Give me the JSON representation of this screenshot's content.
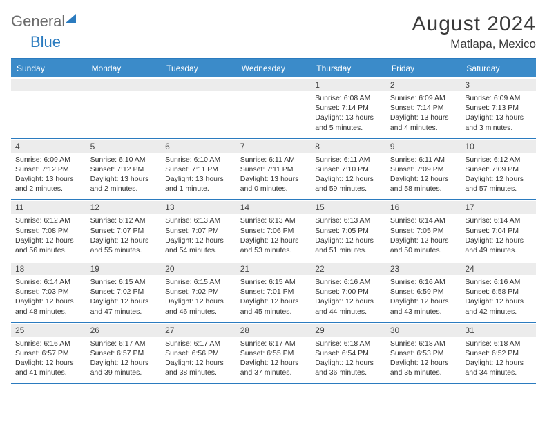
{
  "logo": {
    "t1": "General",
    "t2": "Blue"
  },
  "header": {
    "month": "August 2024",
    "location": "Matlapa, Mexico"
  },
  "days": [
    "Sunday",
    "Monday",
    "Tuesday",
    "Wednesday",
    "Thursday",
    "Friday",
    "Saturday"
  ],
  "colors": {
    "accent": "#3b8bc9",
    "border": "#2b7bbf",
    "gray": "#ececec"
  },
  "weeks": [
    [
      {
        "n": "",
        "sr": "",
        "ss": "",
        "dl": "",
        "empty": true
      },
      {
        "n": "",
        "sr": "",
        "ss": "",
        "dl": "",
        "empty": true
      },
      {
        "n": "",
        "sr": "",
        "ss": "",
        "dl": "",
        "empty": true
      },
      {
        "n": "",
        "sr": "",
        "ss": "",
        "dl": "",
        "empty": true
      },
      {
        "n": "1",
        "sr": "Sunrise: 6:08 AM",
        "ss": "Sunset: 7:14 PM",
        "dl": "Daylight: 13 hours and 5 minutes."
      },
      {
        "n": "2",
        "sr": "Sunrise: 6:09 AM",
        "ss": "Sunset: 7:14 PM",
        "dl": "Daylight: 13 hours and 4 minutes."
      },
      {
        "n": "3",
        "sr": "Sunrise: 6:09 AM",
        "ss": "Sunset: 7:13 PM",
        "dl": "Daylight: 13 hours and 3 minutes."
      }
    ],
    [
      {
        "n": "4",
        "sr": "Sunrise: 6:09 AM",
        "ss": "Sunset: 7:12 PM",
        "dl": "Daylight: 13 hours and 2 minutes."
      },
      {
        "n": "5",
        "sr": "Sunrise: 6:10 AM",
        "ss": "Sunset: 7:12 PM",
        "dl": "Daylight: 13 hours and 2 minutes."
      },
      {
        "n": "6",
        "sr": "Sunrise: 6:10 AM",
        "ss": "Sunset: 7:11 PM",
        "dl": "Daylight: 13 hours and 1 minute."
      },
      {
        "n": "7",
        "sr": "Sunrise: 6:11 AM",
        "ss": "Sunset: 7:11 PM",
        "dl": "Daylight: 13 hours and 0 minutes."
      },
      {
        "n": "8",
        "sr": "Sunrise: 6:11 AM",
        "ss": "Sunset: 7:10 PM",
        "dl": "Daylight: 12 hours and 59 minutes."
      },
      {
        "n": "9",
        "sr": "Sunrise: 6:11 AM",
        "ss": "Sunset: 7:09 PM",
        "dl": "Daylight: 12 hours and 58 minutes."
      },
      {
        "n": "10",
        "sr": "Sunrise: 6:12 AM",
        "ss": "Sunset: 7:09 PM",
        "dl": "Daylight: 12 hours and 57 minutes."
      }
    ],
    [
      {
        "n": "11",
        "sr": "Sunrise: 6:12 AM",
        "ss": "Sunset: 7:08 PM",
        "dl": "Daylight: 12 hours and 56 minutes."
      },
      {
        "n": "12",
        "sr": "Sunrise: 6:12 AM",
        "ss": "Sunset: 7:07 PM",
        "dl": "Daylight: 12 hours and 55 minutes."
      },
      {
        "n": "13",
        "sr": "Sunrise: 6:13 AM",
        "ss": "Sunset: 7:07 PM",
        "dl": "Daylight: 12 hours and 54 minutes."
      },
      {
        "n": "14",
        "sr": "Sunrise: 6:13 AM",
        "ss": "Sunset: 7:06 PM",
        "dl": "Daylight: 12 hours and 53 minutes."
      },
      {
        "n": "15",
        "sr": "Sunrise: 6:13 AM",
        "ss": "Sunset: 7:05 PM",
        "dl": "Daylight: 12 hours and 51 minutes."
      },
      {
        "n": "16",
        "sr": "Sunrise: 6:14 AM",
        "ss": "Sunset: 7:05 PM",
        "dl": "Daylight: 12 hours and 50 minutes."
      },
      {
        "n": "17",
        "sr": "Sunrise: 6:14 AM",
        "ss": "Sunset: 7:04 PM",
        "dl": "Daylight: 12 hours and 49 minutes."
      }
    ],
    [
      {
        "n": "18",
        "sr": "Sunrise: 6:14 AM",
        "ss": "Sunset: 7:03 PM",
        "dl": "Daylight: 12 hours and 48 minutes."
      },
      {
        "n": "19",
        "sr": "Sunrise: 6:15 AM",
        "ss": "Sunset: 7:02 PM",
        "dl": "Daylight: 12 hours and 47 minutes."
      },
      {
        "n": "20",
        "sr": "Sunrise: 6:15 AM",
        "ss": "Sunset: 7:02 PM",
        "dl": "Daylight: 12 hours and 46 minutes."
      },
      {
        "n": "21",
        "sr": "Sunrise: 6:15 AM",
        "ss": "Sunset: 7:01 PM",
        "dl": "Daylight: 12 hours and 45 minutes."
      },
      {
        "n": "22",
        "sr": "Sunrise: 6:16 AM",
        "ss": "Sunset: 7:00 PM",
        "dl": "Daylight: 12 hours and 44 minutes."
      },
      {
        "n": "23",
        "sr": "Sunrise: 6:16 AM",
        "ss": "Sunset: 6:59 PM",
        "dl": "Daylight: 12 hours and 43 minutes."
      },
      {
        "n": "24",
        "sr": "Sunrise: 6:16 AM",
        "ss": "Sunset: 6:58 PM",
        "dl": "Daylight: 12 hours and 42 minutes."
      }
    ],
    [
      {
        "n": "25",
        "sr": "Sunrise: 6:16 AM",
        "ss": "Sunset: 6:57 PM",
        "dl": "Daylight: 12 hours and 41 minutes."
      },
      {
        "n": "26",
        "sr": "Sunrise: 6:17 AM",
        "ss": "Sunset: 6:57 PM",
        "dl": "Daylight: 12 hours and 39 minutes."
      },
      {
        "n": "27",
        "sr": "Sunrise: 6:17 AM",
        "ss": "Sunset: 6:56 PM",
        "dl": "Daylight: 12 hours and 38 minutes."
      },
      {
        "n": "28",
        "sr": "Sunrise: 6:17 AM",
        "ss": "Sunset: 6:55 PM",
        "dl": "Daylight: 12 hours and 37 minutes."
      },
      {
        "n": "29",
        "sr": "Sunrise: 6:18 AM",
        "ss": "Sunset: 6:54 PM",
        "dl": "Daylight: 12 hours and 36 minutes."
      },
      {
        "n": "30",
        "sr": "Sunrise: 6:18 AM",
        "ss": "Sunset: 6:53 PM",
        "dl": "Daylight: 12 hours and 35 minutes."
      },
      {
        "n": "31",
        "sr": "Sunrise: 6:18 AM",
        "ss": "Sunset: 6:52 PM",
        "dl": "Daylight: 12 hours and 34 minutes."
      }
    ]
  ]
}
